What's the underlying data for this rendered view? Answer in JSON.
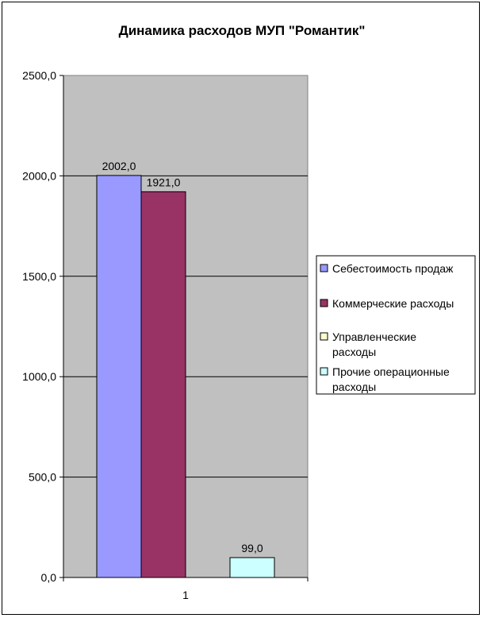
{
  "chart_data": {
    "type": "bar",
    "title": "Динамика расходов МУП \"Романтик\"",
    "categories": [
      "1"
    ],
    "series": [
      {
        "name": "Себестоимость продаж",
        "values": [
          2002.0
        ],
        "label": "2002,0",
        "color": "#9999FF"
      },
      {
        "name": "Коммерческие расходы",
        "values": [
          1921.0
        ],
        "label": "1921,0",
        "color": "#993366"
      },
      {
        "name": "Управленческие расходы",
        "values": [
          0
        ],
        "label": "",
        "color": "#FFFFCC"
      },
      {
        "name": "Прочие операционные расходы",
        "values": [
          99.0
        ],
        "label": "99,0",
        "color": "#CCFFFF"
      }
    ],
    "ylim": [
      0,
      2500
    ],
    "yticks": [
      0,
      500,
      1000,
      1500,
      2000,
      2500
    ],
    "ytick_labels": [
      "0,0",
      "500,0",
      "1000,0",
      "1500,0",
      "2000,0",
      "2500,0"
    ],
    "grid": true,
    "plot_background": "#C0C0C0",
    "legend_position": "right",
    "legend_lines": [
      [
        "Себестоимость продаж"
      ],
      [
        "Коммерческие расходы"
      ],
      [
        "Управленческие",
        "расходы"
      ],
      [
        "Прочие операционные",
        "расходы"
      ]
    ]
  }
}
